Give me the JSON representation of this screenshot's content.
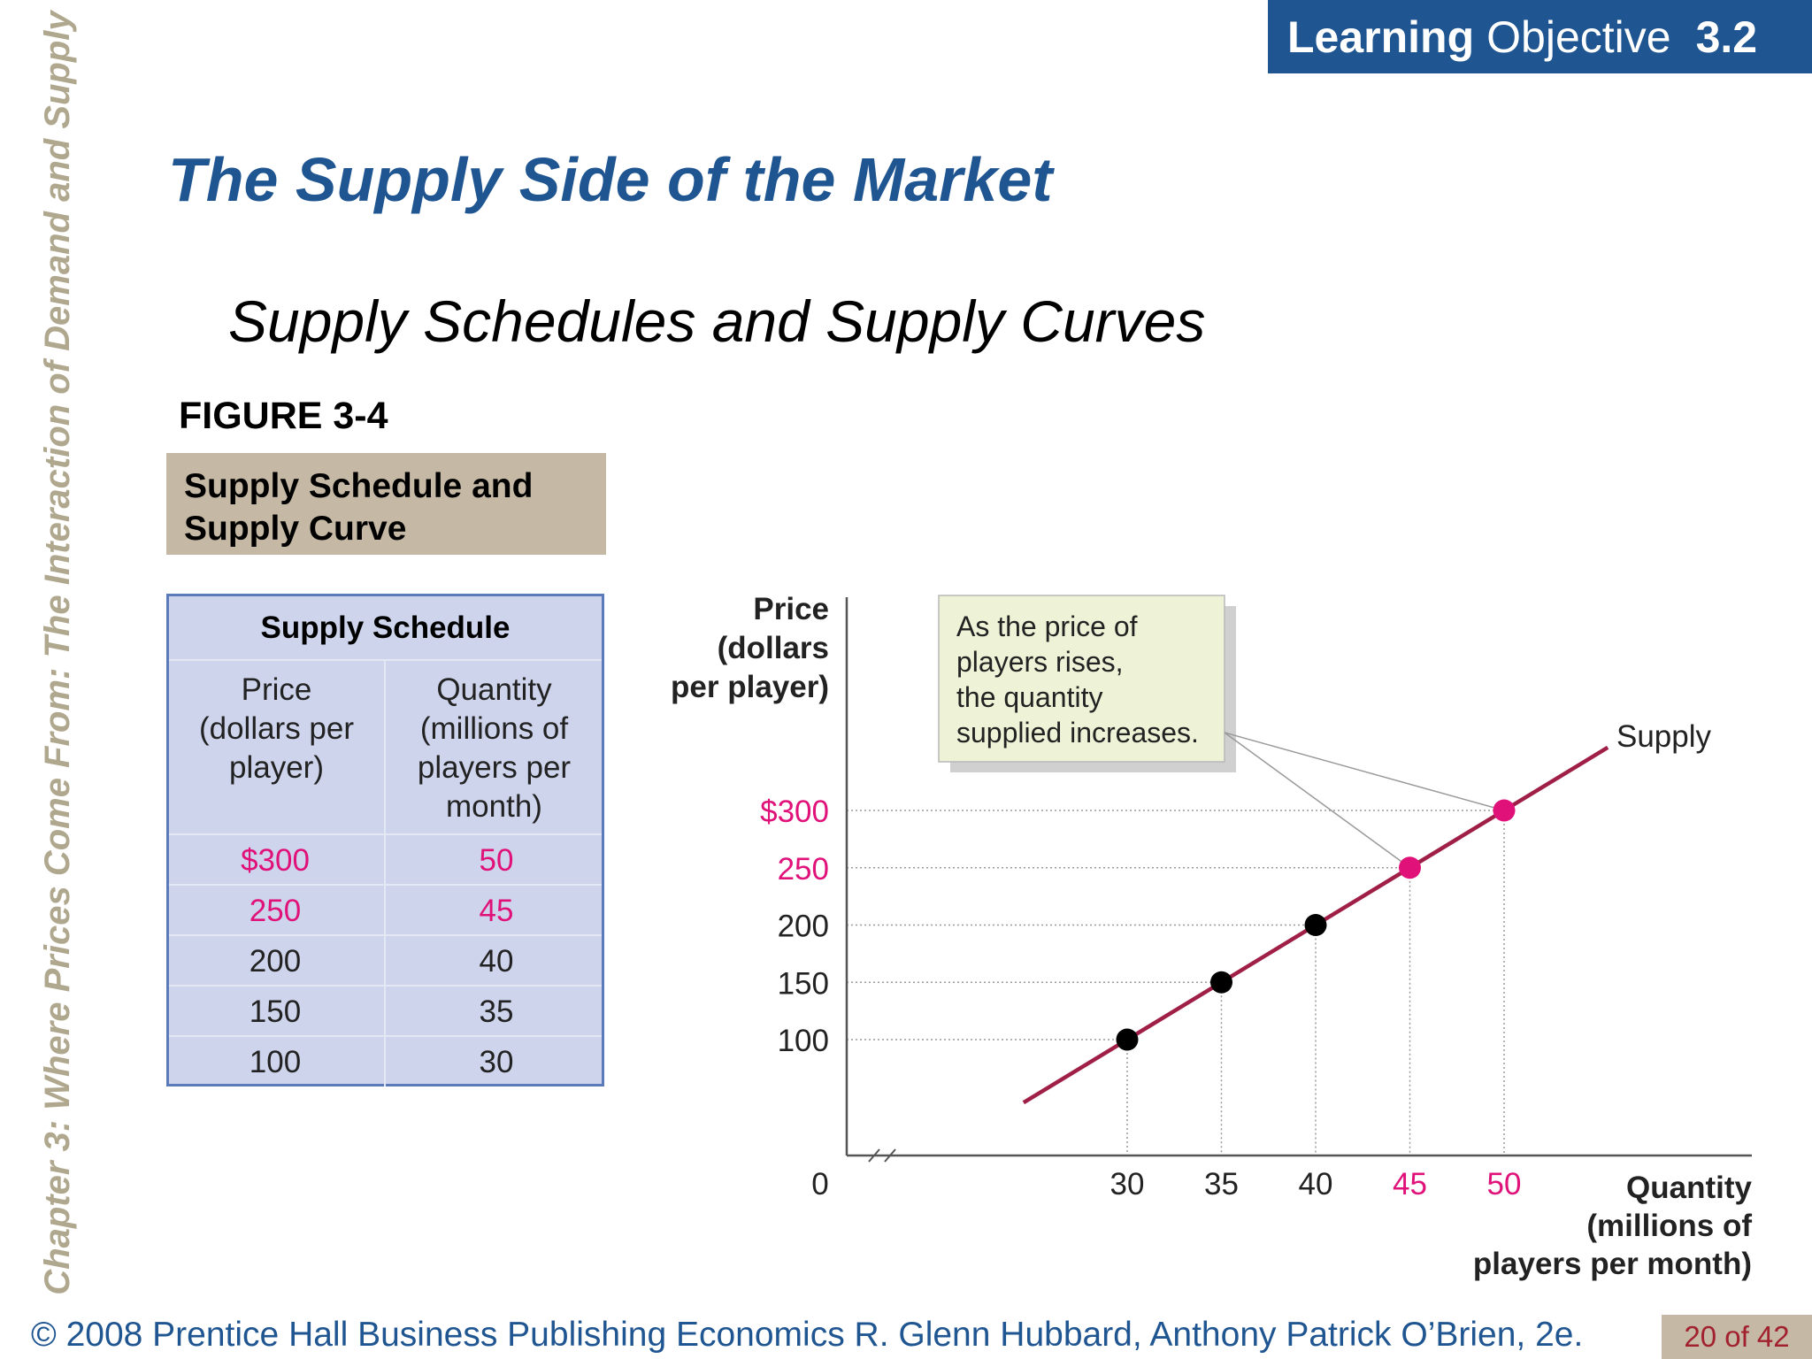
{
  "header": {
    "lo_bold": "Learning",
    "lo_rest": "Objective",
    "lo_number": "3.2"
  },
  "side_text": "Chapter 3: Where Prices Come From: The Interaction of Demand and Supply",
  "title": "The Supply Side of the Market",
  "subtitle": "Supply Schedules and Supply Curves",
  "figure": {
    "number": "FIGURE 3-4",
    "caption_line1": "Supply Schedule and",
    "caption_line2": "Supply Curve"
  },
  "schedule": {
    "title": "Supply Schedule",
    "price_header": [
      "Price",
      "(dollars per",
      "player)"
    ],
    "quantity_header": [
      "Quantity",
      "(millions of",
      "players per",
      "month)"
    ],
    "rows": [
      {
        "price": "$300",
        "quantity": "50",
        "highlight": true
      },
      {
        "price": "250",
        "quantity": "45",
        "highlight": true
      },
      {
        "price": "200",
        "quantity": "40",
        "highlight": false
      },
      {
        "price": "150",
        "quantity": "35",
        "highlight": false
      },
      {
        "price": "100",
        "quantity": "30",
        "highlight": false
      }
    ]
  },
  "colors": {
    "accent_blue": "#1f5591",
    "highlight_magenta": "#e0127a",
    "curve": "#a01f47",
    "tan": "#c5b9a5"
  },
  "chart_data": {
    "type": "line",
    "ylabel": [
      "Price",
      "(dollars",
      "per player)"
    ],
    "xlabel": [
      "Quantity",
      "(millions of",
      "players per month)"
    ],
    "origin_label": "0",
    "series": [
      {
        "name": "Supply",
        "x": [
          30,
          35,
          40,
          45,
          50
        ],
        "y": [
          100,
          150,
          200,
          250,
          300
        ]
      }
    ],
    "highlighted_points": [
      [
        45,
        250
      ],
      [
        50,
        300
      ]
    ],
    "y_tick_labels": [
      "$300",
      "250",
      "200",
      "150",
      "100"
    ],
    "y_ticks": [
      300,
      250,
      200,
      150,
      100
    ],
    "x_tick_labels": [
      "30",
      "35",
      "40",
      "45",
      "50"
    ],
    "x_ticks": [
      30,
      35,
      40,
      45,
      50
    ],
    "line_extent": {
      "x": [
        24.5,
        55.5
      ],
      "y": [
        45,
        355
      ]
    },
    "axis_breaks": true,
    "annotation": [
      "As the price of",
      "players rises,",
      "the quantity",
      "supplied increases."
    ]
  },
  "footer": {
    "text": "© 2008 Prentice Hall Business Publishing   Economics  R. Glenn Hubbard, Anthony Patrick O’Brien, 2e.",
    "page": "20 of 42"
  }
}
